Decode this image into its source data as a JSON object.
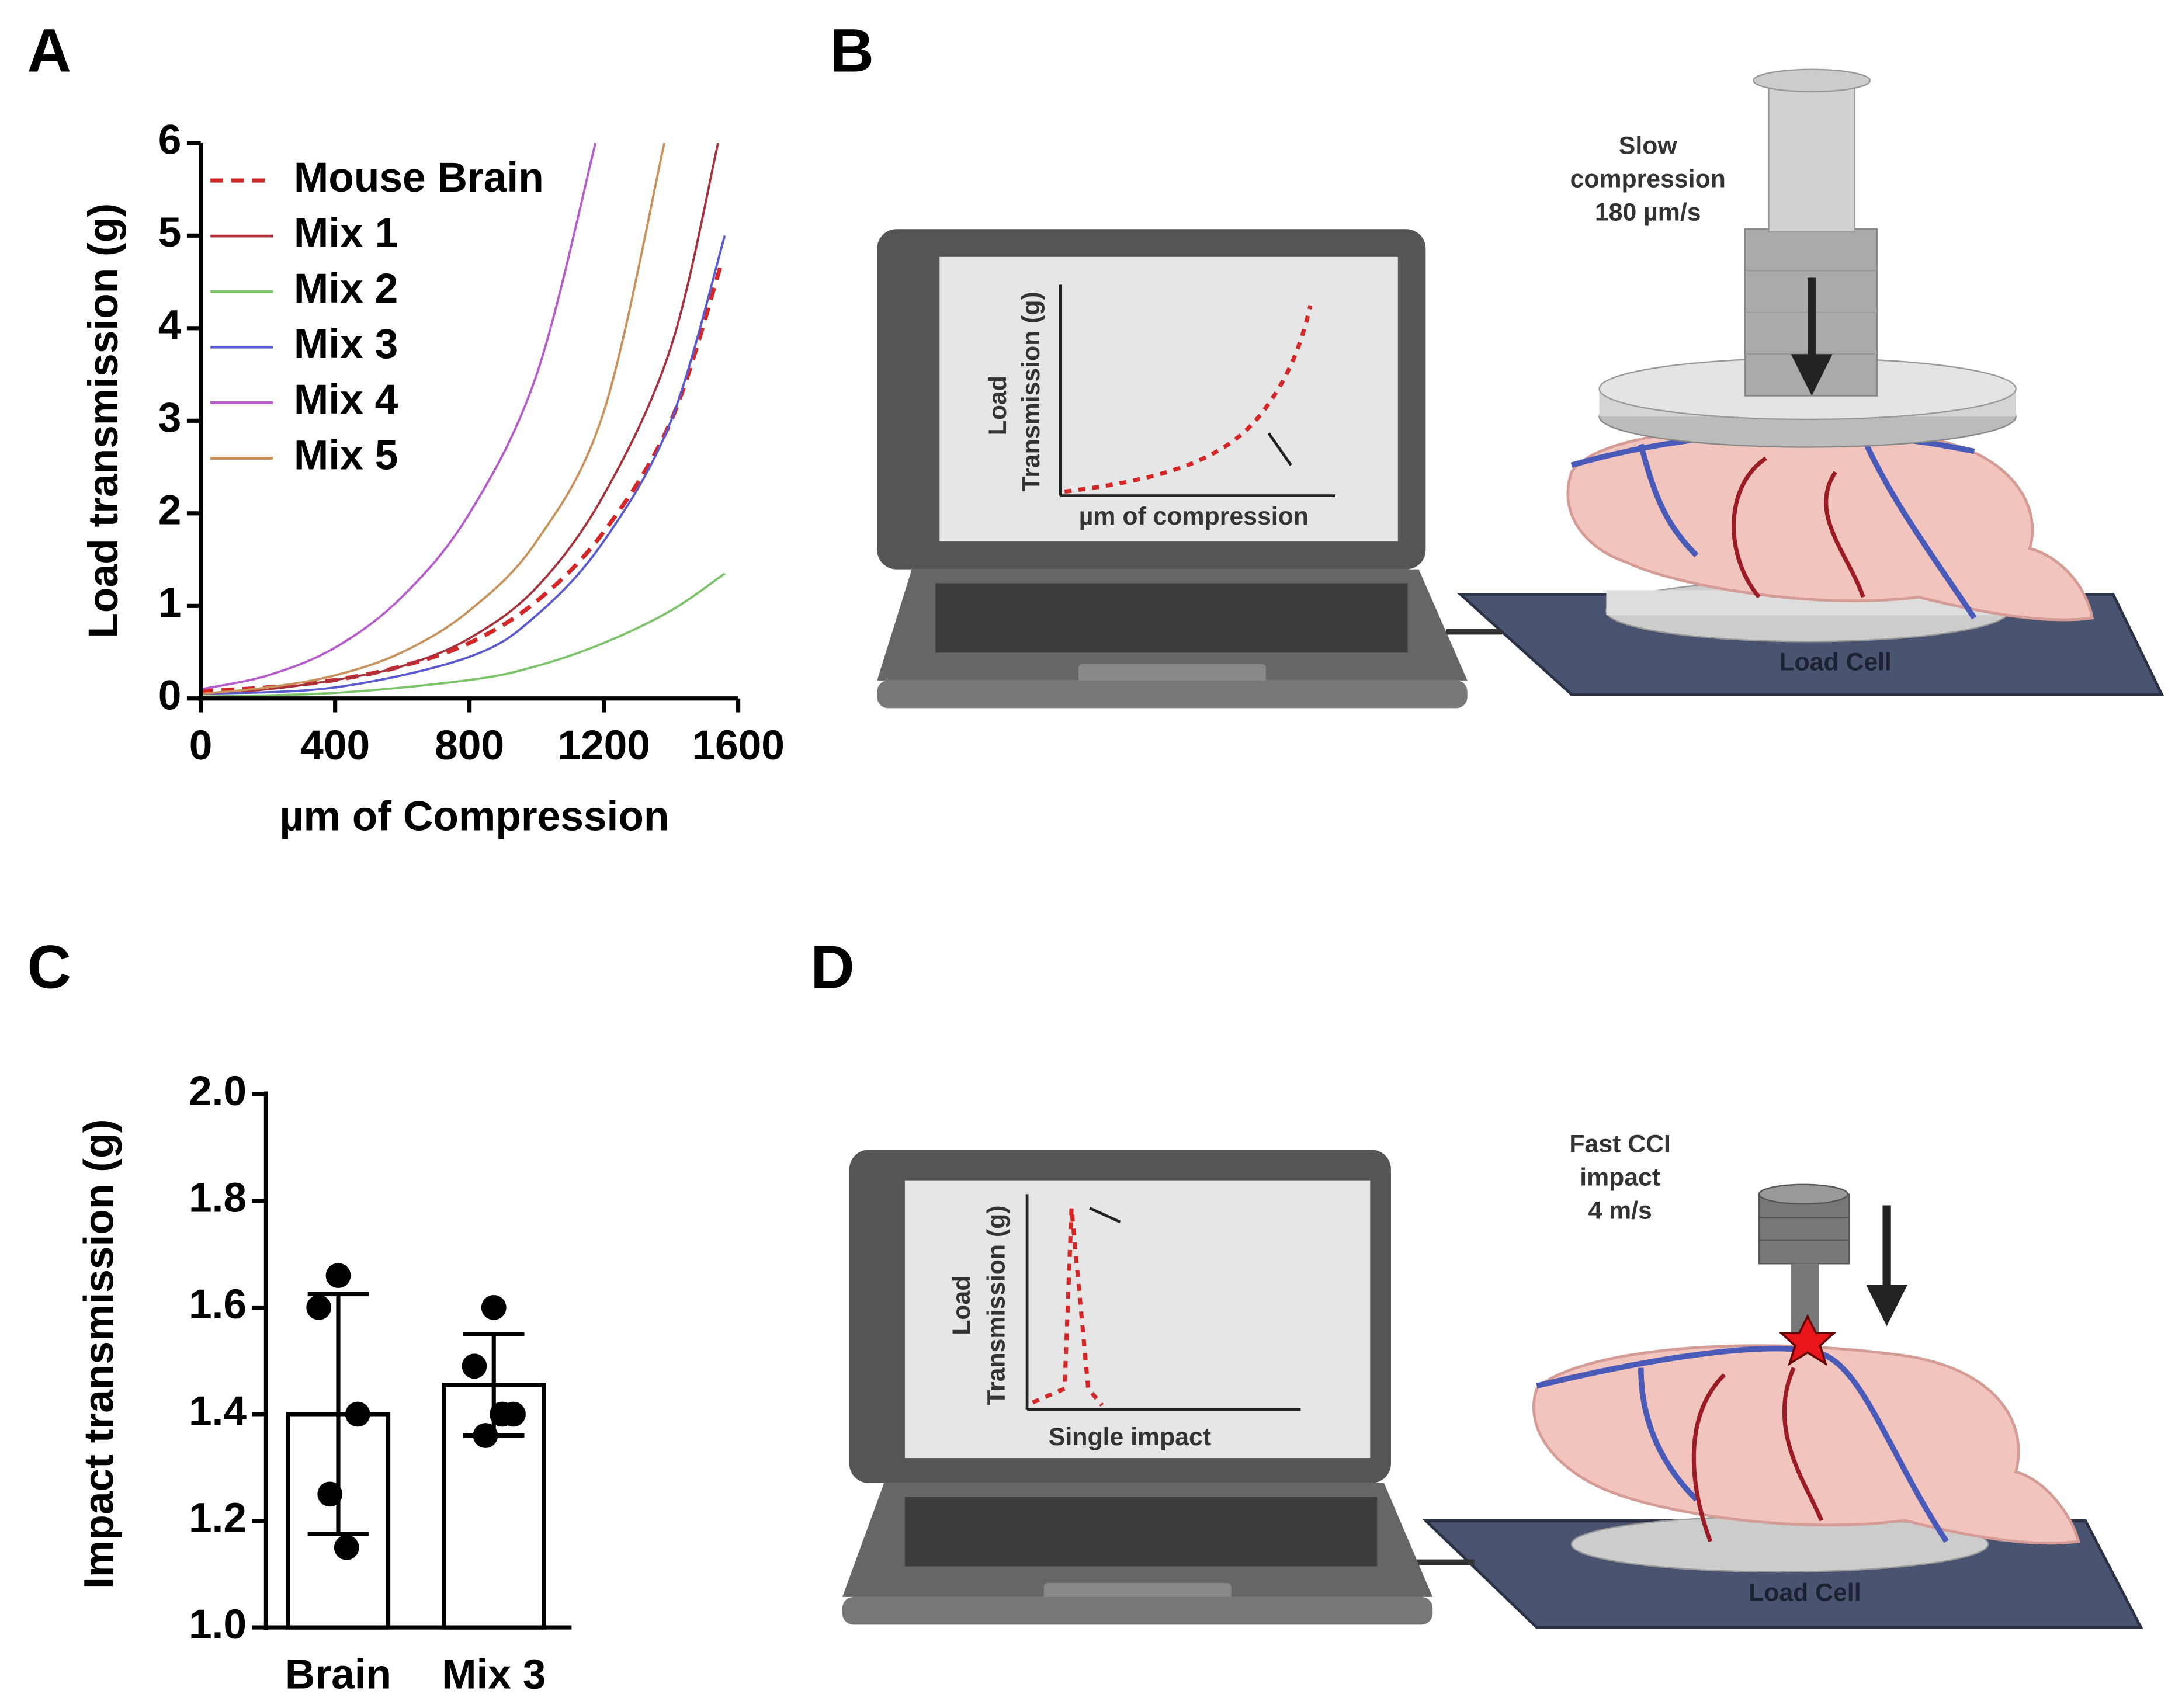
{
  "panel_labels": [
    "A",
    "B",
    "C",
    "D"
  ],
  "chart_data": [
    {
      "type": "line",
      "xlabel": "µm of Compression",
      "ylabel": "Load transmission (g)",
      "xlim": [
        0,
        1600
      ],
      "ylim": [
        0,
        6
      ],
      "xticks": [
        0,
        400,
        800,
        1200,
        1600
      ],
      "yticks": [
        0,
        1,
        2,
        3,
        4,
        5,
        6
      ],
      "grid": false,
      "legend": "upper left",
      "series": [
        {
          "name": "Mouse Brain",
          "color": "#d62728",
          "style": "dashed",
          "x": [
            0,
            200,
            400,
            600,
            800,
            1000,
            1200,
            1400,
            1550
          ],
          "values": [
            0.08,
            0.12,
            0.2,
            0.35,
            0.6,
            1.05,
            1.8,
            3.0,
            4.7
          ]
        },
        {
          "name": "Mix 1",
          "color": "#a8323c",
          "x": [
            0,
            200,
            400,
            600,
            800,
            1000,
            1200,
            1400,
            1540
          ],
          "values": [
            0.05,
            0.1,
            0.2,
            0.35,
            0.65,
            1.2,
            2.2,
            3.8,
            6
          ]
        },
        {
          "name": "Mix 2",
          "color": "#7cc46a",
          "x": [
            0,
            400,
            800,
            1000,
            1200,
            1400,
            1560
          ],
          "values": [
            0.02,
            0.06,
            0.2,
            0.35,
            0.6,
            0.95,
            1.35
          ]
        },
        {
          "name": "Mix 3",
          "color": "#5a5ad0",
          "x": [
            0,
            400,
            800,
            1000,
            1200,
            1400,
            1560
          ],
          "values": [
            0.05,
            0.12,
            0.45,
            0.9,
            1.7,
            3.0,
            5.0
          ]
        },
        {
          "name": "Mix 4",
          "color": "#b75ccd",
          "x": [
            0,
            200,
            400,
            600,
            800,
            1000,
            1175
          ],
          "values": [
            0.1,
            0.25,
            0.55,
            1.1,
            2.0,
            3.5,
            6
          ]
        },
        {
          "name": "Mix 5",
          "color": "#c9915c",
          "x": [
            0,
            200,
            400,
            600,
            800,
            1000,
            1200,
            1380
          ],
          "values": [
            0.05,
            0.12,
            0.25,
            0.5,
            0.95,
            1.7,
            3.1,
            6
          ]
        }
      ]
    },
    {
      "type": "bar",
      "ylabel": "Impact transmission (g)",
      "categories": [
        "Brain",
        "Mix 3"
      ],
      "values": [
        1.4,
        1.455
      ],
      "errors": [
        0.225,
        0.095
      ],
      "color": "#ffffff",
      "points": [
        [
          1.66,
          1.6,
          1.4,
          1.25,
          1.15
        ],
        [
          1.6,
          1.49,
          1.4,
          1.36,
          1.4
        ]
      ],
      "ylim": [
        1.0,
        2.0
      ],
      "yticks": [
        {
          "value": 1.0,
          "label": "1.0"
        },
        1.2,
        1.4,
        1.6,
        1.8,
        {
          "value": 2.0,
          "label": "2.0"
        }
      ],
      "grid": false
    }
  ],
  "panel_b": {
    "instrument": [
      "Slow",
      "compression",
      "180 µm/s"
    ],
    "screen_y_label": [
      "Load",
      "Transmission (g)"
    ],
    "screen_x_label": "µm of compression",
    "base_label": "Load Cell"
  },
  "panel_d": {
    "instrument": [
      "Fast CCI",
      "impact",
      "4 m/s"
    ],
    "screen_y_label": [
      "Load",
      "Transmission (g)"
    ],
    "screen_x_label": "Single impact",
    "base_label": "Load Cell"
  }
}
